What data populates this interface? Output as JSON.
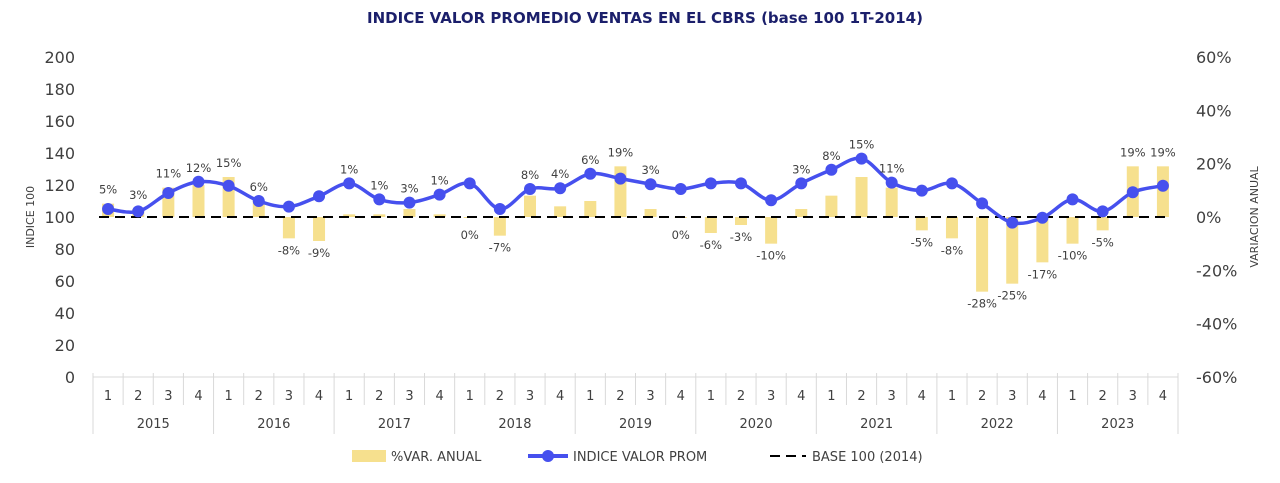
{
  "chart_data": {
    "type": "bar+line",
    "title": "INDICE VALOR PROMEDIO VENTAS EN EL CBRS (base 100 1T-2014)",
    "ylabel_left": "INDICE 100",
    "ylabel_right": "VARIACION ANUAL",
    "ylim_left": [
      0,
      200
    ],
    "ylim_right": [
      -60,
      60
    ],
    "yticks_left": [
      "0",
      "20",
      "40",
      "60",
      "80",
      "100",
      "120",
      "140",
      "160",
      "180",
      "200"
    ],
    "yticks_right": [
      "-60%",
      "-40%",
      "-20%",
      "0%",
      "20%",
      "40%",
      "60%"
    ],
    "quarters": [
      "1",
      "2",
      "3",
      "4",
      "1",
      "2",
      "3",
      "4",
      "1",
      "2",
      "3",
      "4",
      "1",
      "2",
      "3",
      "4",
      "1",
      "2",
      "3",
      "4",
      "1",
      "2",
      "3",
      "4",
      "1",
      "2",
      "3",
      "4",
      "1",
      "2",
      "3",
      "4",
      "1",
      "2",
      "3",
      "4"
    ],
    "years": [
      "2015",
      "2016",
      "2017",
      "2018",
      "2019",
      "2020",
      "2021",
      "2022",
      "2023"
    ],
    "grid": false,
    "legend_position": "bottom",
    "series": [
      {
        "name": "%VAR. ANUAL",
        "type": "bar",
        "axis": "right",
        "color": "#F6E08E",
        "values": [
          5,
          3,
          11,
          12,
          15,
          6,
          -8,
          -9,
          1,
          1,
          3,
          1,
          0,
          -7,
          8,
          4,
          6,
          19,
          3,
          0,
          -6,
          -3,
          -10,
          3,
          8,
          15,
          11,
          -5,
          -8,
          -28,
          -25,
          -17,
          -10,
          -5,
          19,
          19
        ],
        "labels": [
          "5%",
          "3%",
          "11%",
          "12%",
          "15%",
          "6%",
          "-8%",
          "-9%",
          "1%",
          "1%",
          "3%",
          "1%",
          "0%",
          "-7%",
          "8%",
          "4%",
          "6%",
          "19%",
          "3%",
          "0%",
          "-6%",
          "-3%",
          "-10%",
          "3%",
          "8%",
          "15%",
          "11%",
          "-5%",
          "-8%",
          "-28%",
          "-25%",
          "-17%",
          "-10%",
          "-5%",
          "19%",
          "19%"
        ]
      },
      {
        "name": "INDICE VALOR PROM",
        "type": "line",
        "axis": "left",
        "color": "#4650EE",
        "values": [
          105,
          103.5,
          115,
          122,
          119.5,
          110,
          106.5,
          113,
          121,
          111,
          109,
          114,
          121,
          105,
          117.5,
          118,
          127,
          124,
          120.5,
          117.5,
          121,
          121,
          110.5,
          121,
          129.5,
          136.5,
          121.5,
          116.5,
          121,
          108.5,
          96.5,
          99.5,
          111,
          103.5,
          115.5,
          119.5
        ]
      },
      {
        "name": "BASE 100 (2014)",
        "type": "line",
        "axis": "left",
        "color": "#000000",
        "dash": true,
        "values": [
          100
        ]
      }
    ]
  }
}
